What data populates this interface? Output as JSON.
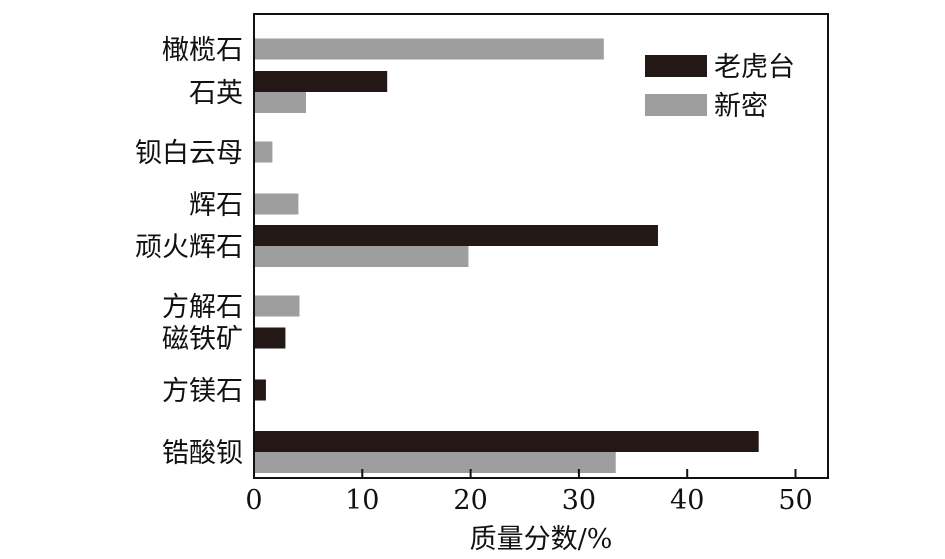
{
  "chart_data": {
    "type": "bar",
    "orientation": "horizontal",
    "categories": [
      "橄榄石",
      "石英",
      "钡白云母",
      "辉石",
      "顽火辉石",
      "方解石",
      "磁铁矿",
      "方镁石",
      "锆酸钡"
    ],
    "series": [
      {
        "name": "老虎台",
        "color": "#231815",
        "values": [
          null,
          12.3,
          null,
          null,
          37.3,
          null,
          2.9,
          1.1,
          46.6
        ]
      },
      {
        "name": "新密",
        "color": "#9e9e9e",
        "values": [
          32.3,
          4.8,
          1.7,
          4.1,
          19.8,
          4.2,
          null,
          null,
          33.4
        ]
      }
    ],
    "xlabel": "质量分数/%",
    "ylabel": "",
    "xlim": [
      0,
      53
    ],
    "xticks": [
      0,
      10,
      20,
      30,
      40,
      50
    ],
    "grid": false,
    "legend_position": "top-right"
  }
}
